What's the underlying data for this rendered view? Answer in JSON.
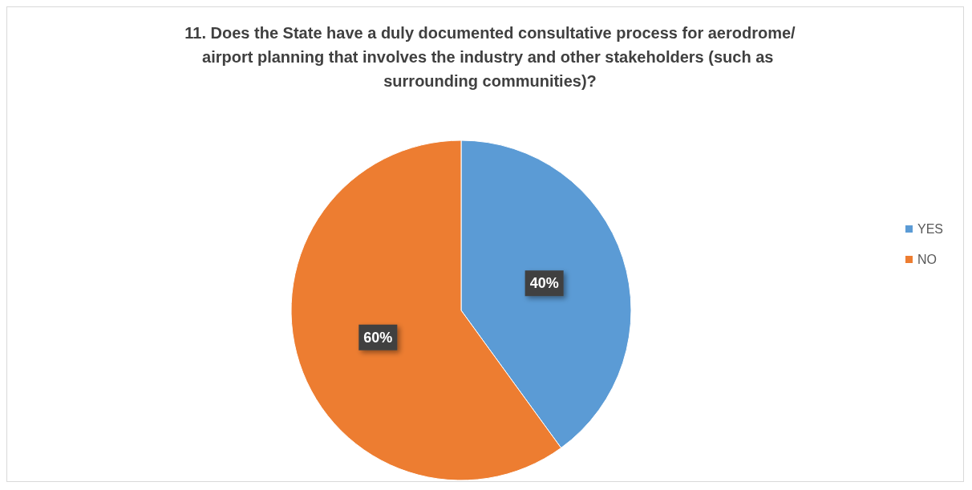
{
  "chart_data": {
    "type": "pie",
    "title": "11. Does the State have a duly documented consultative process for aerodrome/airport planning that involves the industry and other stakeholders (such as surrounding communities)?",
    "categories": [
      "YES",
      "NO"
    ],
    "values": [
      40,
      60
    ],
    "colors": [
      "#5b9bd5",
      "#ed7d31"
    ],
    "value_labels": [
      "40%",
      "60%"
    ],
    "legend": "right"
  }
}
